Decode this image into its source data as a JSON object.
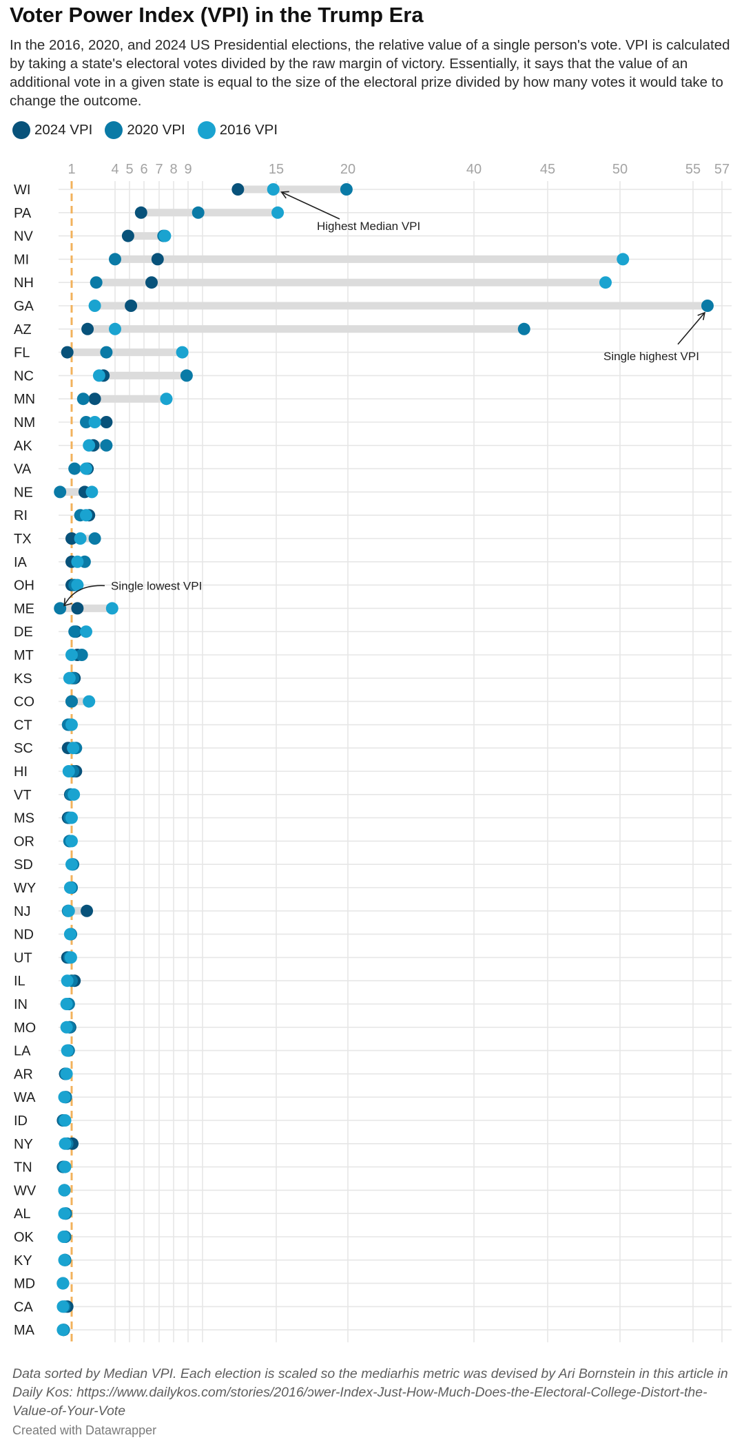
{
  "title": "Voter Power Index (VPI) in the Trump Era",
  "subtitle": "In the 2016, 2020, and 2024 US Presidential elections, the relative value of a single person's vote. VPI is calculated by taking a state's electoral votes divided by the raw margin of victory. Essentially, it says that the value of an additional vote in a given state is equal to the size of the electoral prize divided by how many votes it would take to change the outcome.",
  "legend": [
    {
      "label": "2024 VPI",
      "color": "#08527a"
    },
    {
      "label": "2020 VPI",
      "color": "#0a7aa6"
    },
    {
      "label": "2016 VPI",
      "color": "#1aa3d0"
    }
  ],
  "notes": "Data sorted by Median VPI. Each election is scaled so the mediarhis metric was devised by Ari Bornstein in this article in Daily Kos: https://www.dailykos.com/stories/2016/ɔwer-Index-Just-How-Much-Does-the-Electoral-College-Distort-the-Value-of-Your-Vote",
  "credit": "Created with Datawrapper",
  "colors": {
    "c2024": "#08527a",
    "c2020": "#0a7aa6",
    "c2016": "#1aa3d0",
    "range_bar": "#dcdcdc",
    "grid": "#e6e6e6",
    "reference_line": "#f2b25c"
  },
  "chart_data": {
    "type": "dot-range",
    "title": "Voter Power Index (VPI) in the Trump Era",
    "xlabel": "",
    "ylabel": "",
    "x_ticks": [
      {
        "value": 1,
        "label": "1"
      },
      {
        "value": 4,
        "label": "4"
      },
      {
        "value": 5,
        "label": "5"
      },
      {
        "value": 6,
        "label": "6"
      },
      {
        "value": 7,
        "label": "7"
      },
      {
        "value": 8,
        "label": "8"
      },
      {
        "value": 9,
        "label": "9"
      },
      {
        "value": 10,
        "label": ""
      },
      {
        "value": 15,
        "label": "15"
      },
      {
        "value": 20,
        "label": "20"
      },
      {
        "value": 40,
        "label": "40"
      },
      {
        "value": 45,
        "label": "45"
      },
      {
        "value": 50,
        "label": "50"
      },
      {
        "value": 55,
        "label": "55"
      },
      {
        "value": 57,
        "label": "57"
      }
    ],
    "reference_line": 1,
    "grid": true,
    "legend_position": "top-left",
    "series_order": [
      "2024",
      "2020",
      "2016"
    ],
    "rows": [
      {
        "state": "WI",
        "v2024": 12.4,
        "v2020": 19.9,
        "v2016": 14.8
      },
      {
        "state": "PA",
        "v2024": 5.8,
        "v2020": 9.7,
        "v2016": 15.1
      },
      {
        "state": "NV",
        "v2024": 4.9,
        "v2020": 7.3,
        "v2016": 7.4
      },
      {
        "state": "MI",
        "v2024": 6.9,
        "v2020": 4.0,
        "v2016": 50.2
      },
      {
        "state": "NH",
        "v2024": 6.5,
        "v2020": 2.7,
        "v2016": 49.0
      },
      {
        "state": "GA",
        "v2024": 5.1,
        "v2020": 56.0,
        "v2016": 2.6
      },
      {
        "state": "AZ",
        "v2024": 2.1,
        "v2020": 43.4,
        "v2016": 4.0
      },
      {
        "state": "FL",
        "v2024": 0.7,
        "v2020": 3.4,
        "v2016": 8.6
      },
      {
        "state": "NC",
        "v2024": 3.2,
        "v2020": 8.9,
        "v2016": 2.9
      },
      {
        "state": "MN",
        "v2024": 2.6,
        "v2020": 1.8,
        "v2016": 7.5
      },
      {
        "state": "NM",
        "v2024": 3.4,
        "v2020": 2.0,
        "v2016": 2.6
      },
      {
        "state": "AK",
        "v2024": 2.5,
        "v2020": 3.4,
        "v2016": 2.2
      },
      {
        "state": "VA",
        "v2024": 2.1,
        "v2020": 1.2,
        "v2016": 2.0
      },
      {
        "state": "NE",
        "v2024": 1.9,
        "v2020": 0.2,
        "v2016": 2.4
      },
      {
        "state": "RI",
        "v2024": 2.2,
        "v2020": 1.6,
        "v2016": 2.0
      },
      {
        "state": "TX",
        "v2024": 1.0,
        "v2020": 2.6,
        "v2016": 1.6
      },
      {
        "state": "IA",
        "v2024": 1.0,
        "v2020": 1.9,
        "v2016": 1.4
      },
      {
        "state": "OH",
        "v2024": 1.0,
        "v2020": 1.2,
        "v2016": 1.4
      },
      {
        "state": "ME",
        "v2024": 1.4,
        "v2020": 0.2,
        "v2016": 3.8
      },
      {
        "state": "DE",
        "v2024": 1.3,
        "v2020": 1.2,
        "v2016": 2.0
      },
      {
        "state": "MT",
        "v2024": 1.4,
        "v2020": 1.7,
        "v2016": 1.0
      },
      {
        "state": "KS",
        "v2024": 1.2,
        "v2020": 1.1,
        "v2016": 0.85
      },
      {
        "state": "CO",
        "v2024": 1.0,
        "v2020": 1.0,
        "v2016": 2.2
      },
      {
        "state": "CT",
        "v2024": 0.85,
        "v2020": 0.75,
        "v2016": 1.0
      },
      {
        "state": "SC",
        "v2024": 0.75,
        "v2020": 1.3,
        "v2016": 1.1
      },
      {
        "state": "HI",
        "v2024": 1.3,
        "v2020": 1.1,
        "v2016": 0.8
      },
      {
        "state": "VT",
        "v2024": 0.9,
        "v2020": 0.95,
        "v2016": 1.15
      },
      {
        "state": "MS",
        "v2024": 0.75,
        "v2020": 0.85,
        "v2016": 1.0
      },
      {
        "state": "OR",
        "v2024": 0.85,
        "v2020": 0.85,
        "v2016": 1.0
      },
      {
        "state": "SD",
        "v2024": 1.05,
        "v2020": 1.1,
        "v2016": 1.0
      },
      {
        "state": "WY",
        "v2024": 1.0,
        "v2020": 1.0,
        "v2016": 0.9
      },
      {
        "state": "NJ",
        "v2024": 2.05,
        "v2020": 0.75,
        "v2016": 0.8
      },
      {
        "state": "ND",
        "v2024": 0.95,
        "v2020": 0.95,
        "v2016": 0.9
      },
      {
        "state": "UT",
        "v2024": 0.7,
        "v2020": 0.85,
        "v2016": 0.95
      },
      {
        "state": "IL",
        "v2024": 1.2,
        "v2020": 1.0,
        "v2016": 0.7
      },
      {
        "state": "IN",
        "v2024": 0.8,
        "v2020": 0.8,
        "v2016": 0.65
      },
      {
        "state": "MO",
        "v2024": 0.9,
        "v2020": 0.85,
        "v2016": 0.65
      },
      {
        "state": "LA",
        "v2024": 0.75,
        "v2020": 0.8,
        "v2016": 0.7
      },
      {
        "state": "AR",
        "v2024": 0.55,
        "v2020": 0.6,
        "v2016": 0.65
      },
      {
        "state": "WA",
        "v2024": 0.6,
        "v2020": 0.6,
        "v2016": 0.5
      },
      {
        "state": "ID",
        "v2024": 0.4,
        "v2020": 0.45,
        "v2016": 0.55
      },
      {
        "state": "NY",
        "v2024": 1.05,
        "v2020": 0.7,
        "v2016": 0.55
      },
      {
        "state": "TN",
        "v2024": 0.4,
        "v2020": 0.45,
        "v2016": 0.55
      },
      {
        "state": "WV",
        "v2024": 0.5,
        "v2020": 0.5,
        "v2016": 0.5
      },
      {
        "state": "AL",
        "v2024": 0.6,
        "v2020": 0.6,
        "v2016": 0.5
      },
      {
        "state": "OK",
        "v2024": 0.55,
        "v2020": 0.55,
        "v2016": 0.45
      },
      {
        "state": "KY",
        "v2024": 0.55,
        "v2020": 0.55,
        "v2016": 0.5
      },
      {
        "state": "MD",
        "v2024": 0.4,
        "v2020": 0.4,
        "v2016": 0.4
      },
      {
        "state": "CA",
        "v2024": 0.7,
        "v2020": 0.5,
        "v2016": 0.4
      },
      {
        "state": "MA",
        "v2024": 0.45,
        "v2020": 0.45,
        "v2016": 0.4
      }
    ],
    "annotations": [
      {
        "text": "Highest Median VPI",
        "state": "WI",
        "target_series": "2016"
      },
      {
        "text": "Single highest VPI",
        "state": "GA",
        "target_series": "2020"
      },
      {
        "text": "Single lowest VPI",
        "state": "ME",
        "target_series": "2020"
      }
    ]
  }
}
